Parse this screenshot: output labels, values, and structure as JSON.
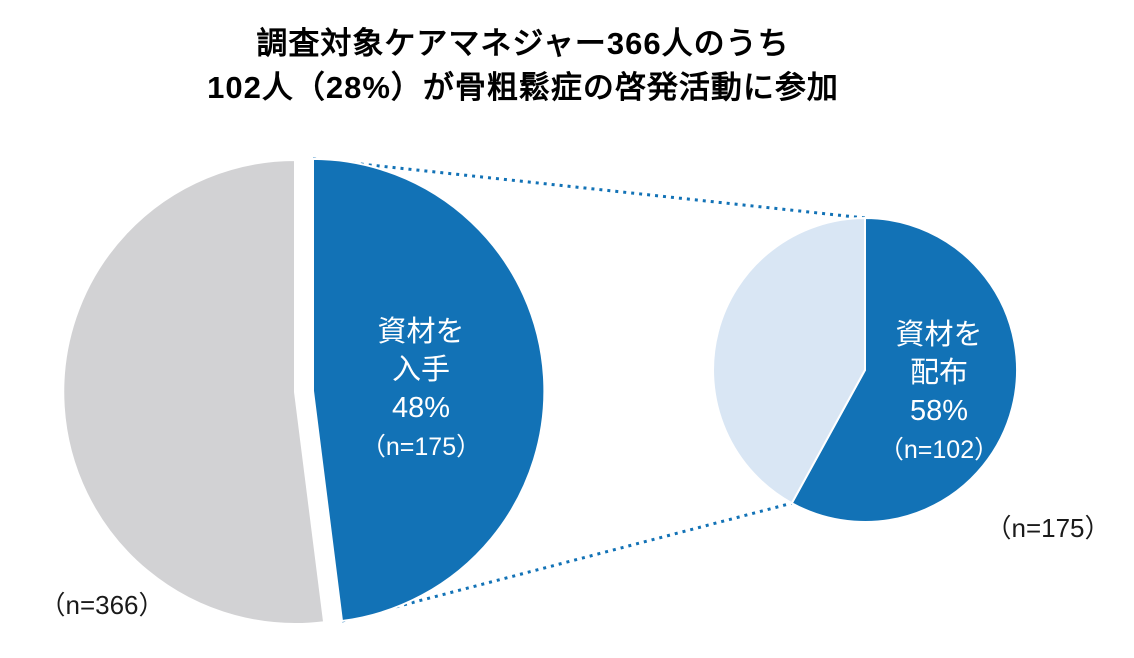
{
  "title": {
    "line1": "調査対象ケアマネジャー366人のうち",
    "line2": "102人（28%）が骨粗鬆症の啓発活動に参加"
  },
  "colors": {
    "primary_blue": "#1272B6",
    "light_blue": "#D9E6F4",
    "gray": "#D2D2D4",
    "label_white": "#FFFFFF",
    "text_black": "#000000"
  },
  "chart_data": [
    {
      "type": "pie",
      "id": "overview-pie",
      "n_total": 366,
      "total_label": "（n=366）",
      "slices": [
        {
          "name": "materials-obtained",
          "value_percent": 48,
          "n": 175,
          "color": "#1272B6",
          "exploded": true,
          "highlight": true,
          "label_lines": [
            "資材を",
            "入手",
            "48%",
            "（n=175）"
          ]
        },
        {
          "name": "others",
          "value_percent": 52,
          "color": "#D2D2D4",
          "exploded": false,
          "highlight": false,
          "label_lines": []
        }
      ]
    },
    {
      "type": "pie",
      "id": "detail-pie",
      "n_total": 175,
      "total_label": "（n=175）",
      "slices": [
        {
          "name": "materials-distributed",
          "value_percent": 58,
          "n": 102,
          "color": "#1272B6",
          "exploded": false,
          "highlight": true,
          "label_lines": [
            "資材を",
            "配布",
            "58%",
            "（n=102）"
          ]
        },
        {
          "name": "others",
          "value_percent": 42,
          "color": "#D9E6F4",
          "exploded": false,
          "highlight": false,
          "label_lines": []
        }
      ]
    }
  ]
}
